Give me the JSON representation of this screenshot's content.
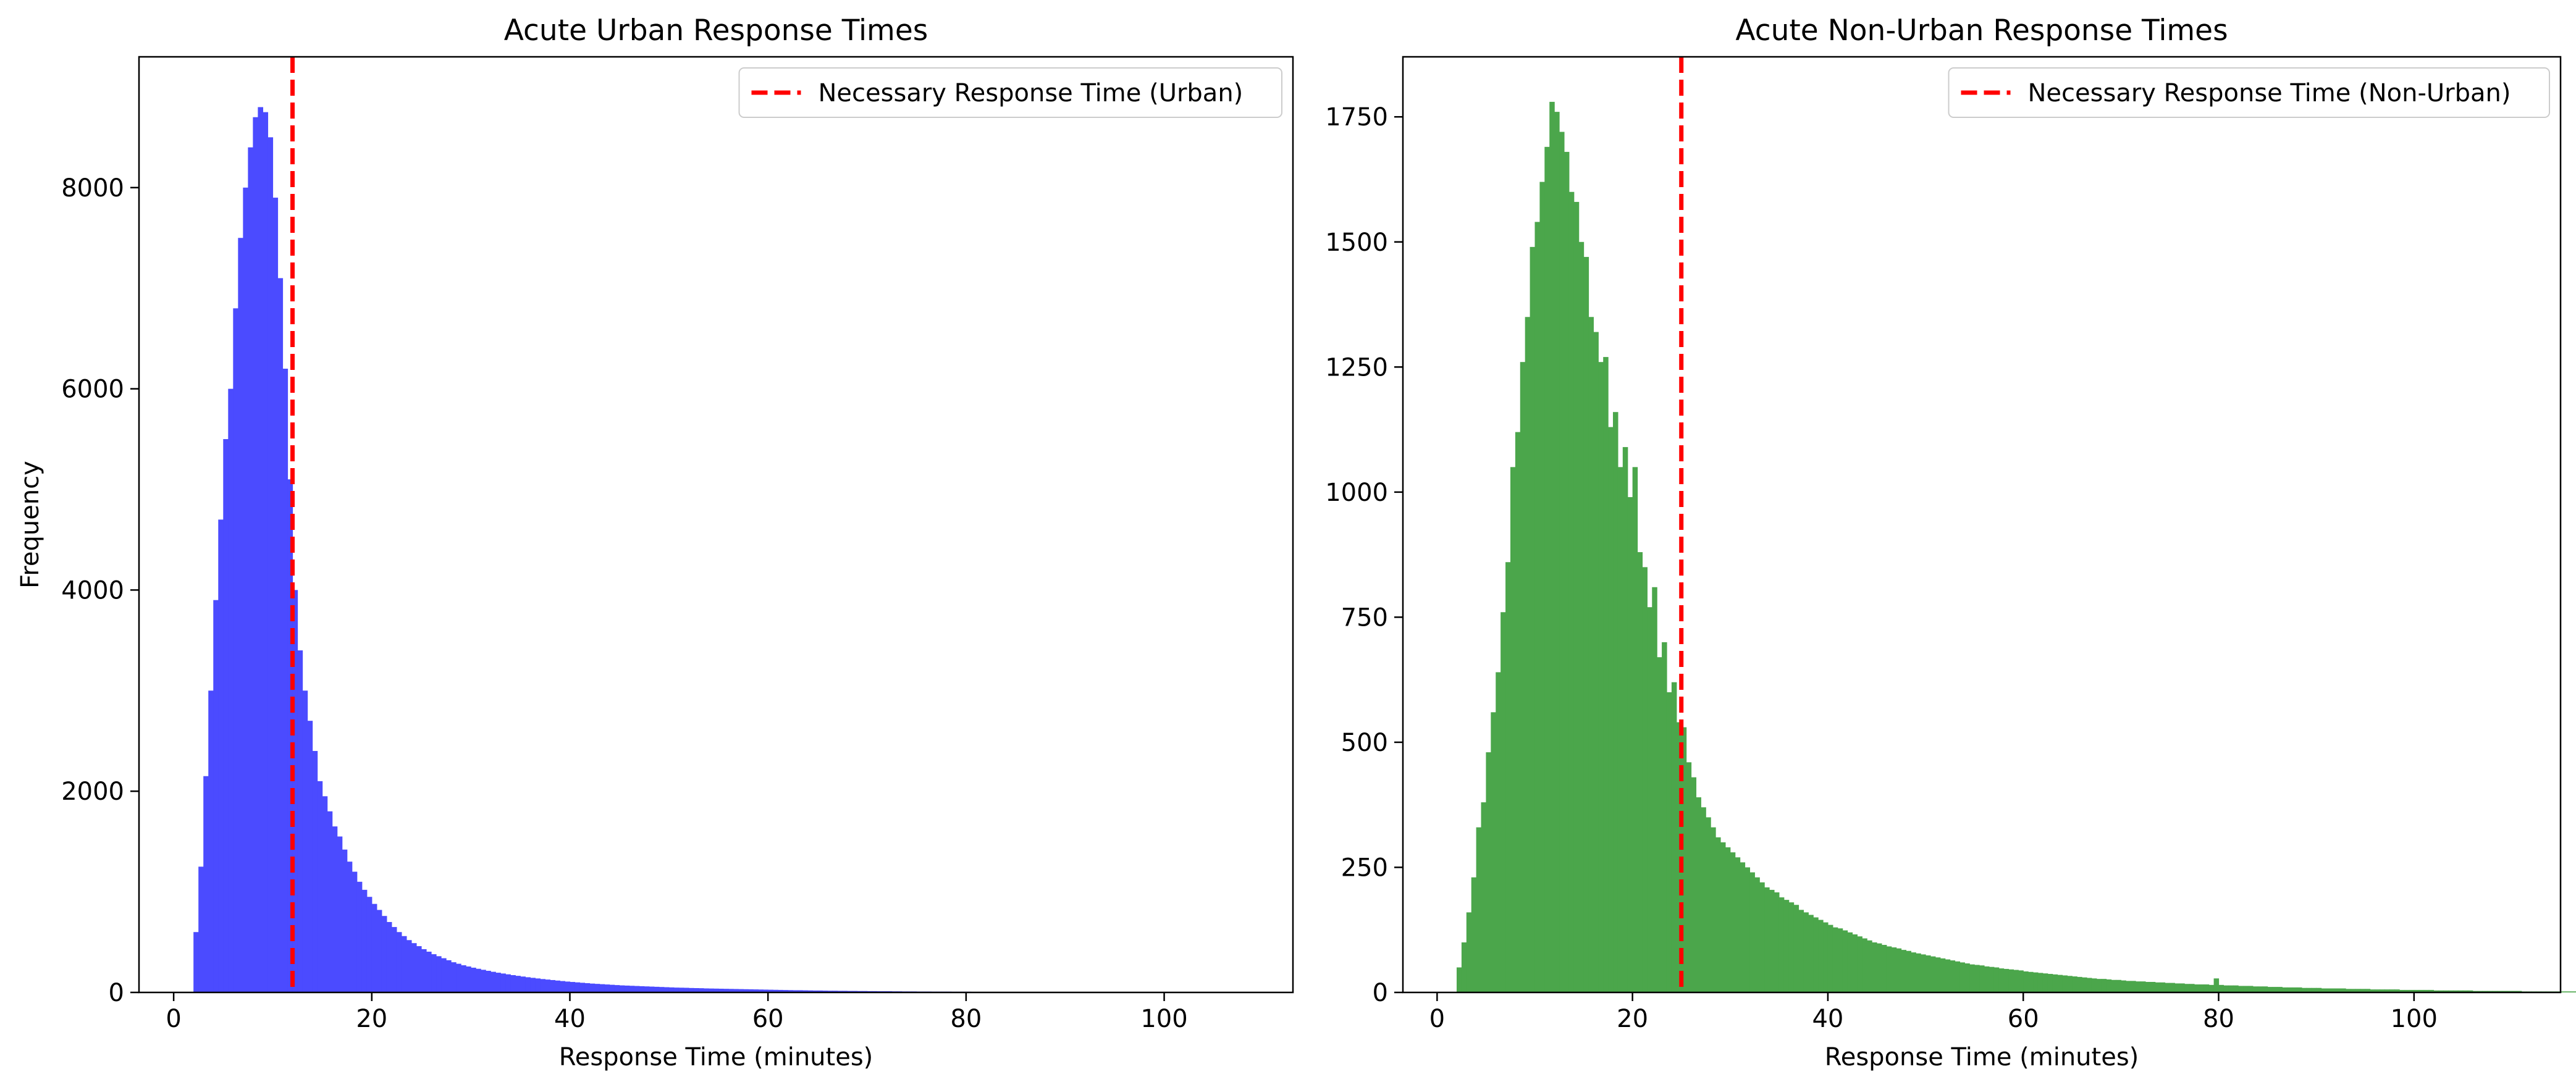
{
  "chart_data": [
    {
      "type": "histogram",
      "title": "Acute Urban Response Times",
      "xlabel": "Response Time (minutes)",
      "ylabel": "Frequency",
      "xlim": [
        -3.5,
        113
      ],
      "ylim": [
        0,
        9300
      ],
      "xticks": [
        0,
        20,
        40,
        60,
        80,
        100
      ],
      "yticks": [
        0,
        2000,
        4000,
        6000,
        8000
      ],
      "bar_color": "#4b4bff",
      "bin_start": 2,
      "bin_width": 0.5,
      "bin_counts": [
        600,
        1250,
        2150,
        3000,
        3900,
        4700,
        5500,
        6000,
        6800,
        7500,
        8000,
        8400,
        8700,
        8800,
        8750,
        8500,
        7900,
        7100,
        6200,
        5100,
        4000,
        3400,
        3000,
        2700,
        2400,
        2100,
        1950,
        1800,
        1650,
        1550,
        1420,
        1300,
        1200,
        1100,
        1020,
        950,
        880,
        820,
        760,
        700,
        650,
        600,
        560,
        520,
        490,
        460,
        430,
        405,
        380,
        360,
        340,
        320,
        300,
        285,
        270,
        258,
        246,
        235,
        225,
        215,
        205,
        196,
        188,
        180,
        172,
        165,
        158,
        151,
        145,
        139,
        133,
        128,
        123,
        118,
        113,
        108,
        104,
        100,
        96,
        92,
        88,
        85,
        82,
        79,
        76,
        73,
        70,
        68,
        66,
        64,
        62,
        60,
        58,
        56,
        54,
        52,
        50,
        48,
        47,
        46,
        44,
        43,
        42,
        40,
        39,
        38,
        37,
        36,
        35,
        34,
        33,
        32,
        31,
        30,
        29,
        28,
        27,
        26,
        25,
        24,
        23,
        22,
        22,
        21,
        20,
        19,
        19,
        18,
        17,
        17,
        16,
        16,
        15,
        15,
        14,
        14,
        13,
        13,
        12,
        12,
        12,
        11,
        11,
        10,
        10,
        10,
        9,
        9,
        9,
        8,
        8,
        8,
        8,
        7,
        7,
        7,
        7,
        6,
        6,
        6,
        6,
        6,
        5,
        5,
        5,
        5,
        5,
        5,
        4,
        4,
        4,
        4,
        4,
        4,
        4,
        3,
        3,
        3,
        3,
        3,
        3,
        3,
        3,
        3,
        2,
        2,
        2,
        2,
        2,
        2,
        2,
        2,
        2,
        2,
        2,
        2,
        2,
        1,
        1,
        1,
        1,
        1,
        1,
        1,
        1,
        1,
        1,
        1,
        1,
        1,
        1,
        1,
        1,
        1,
        1,
        1,
        1
      ],
      "reference_line": {
        "label": "Necessary Response Time (Urban)",
        "x": 12,
        "color": "#ff0000",
        "style": "dashed"
      },
      "legend_position": "top-right"
    },
    {
      "type": "histogram",
      "title": "Acute Non-Urban Response Times",
      "xlabel": "Response Time (minutes)",
      "ylabel": "",
      "xlim": [
        -3.5,
        115
      ],
      "ylim": [
        0,
        1870
      ],
      "xticks": [
        0,
        20,
        40,
        60,
        80,
        100
      ],
      "yticks": [
        0,
        250,
        500,
        750,
        1000,
        1250,
        1500,
        1750
      ],
      "bar_color": "#4ba64b",
      "bin_start": 2,
      "bin_width": 0.5,
      "bin_counts": [
        50,
        100,
        160,
        230,
        330,
        380,
        480,
        560,
        640,
        760,
        860,
        1050,
        1120,
        1260,
        1350,
        1490,
        1540,
        1620,
        1690,
        1780,
        1760,
        1720,
        1680,
        1600,
        1580,
        1500,
        1470,
        1350,
        1320,
        1260,
        1270,
        1130,
        1160,
        1050,
        1090,
        990,
        1050,
        880,
        850,
        770,
        810,
        670,
        700,
        600,
        620,
        540,
        530,
        460,
        430,
        390,
        370,
        350,
        330,
        310,
        300,
        290,
        280,
        270,
        260,
        250,
        240,
        230,
        220,
        210,
        205,
        200,
        190,
        185,
        180,
        175,
        165,
        160,
        155,
        150,
        145,
        140,
        135,
        130,
        128,
        124,
        120,
        116,
        112,
        108,
        104,
        100,
        98,
        95,
        92,
        90,
        88,
        85,
        83,
        80,
        78,
        76,
        74,
        72,
        70,
        68,
        66,
        64,
        62,
        60,
        58,
        56,
        55,
        54,
        52,
        51,
        50,
        48,
        47,
        46,
        45,
        44,
        42,
        41,
        40,
        39,
        38,
        37,
        36,
        35,
        34,
        33,
        32,
        31,
        30,
        29,
        28,
        27,
        27,
        26,
        25,
        25,
        24,
        23,
        23,
        22,
        22,
        21,
        21,
        20,
        20,
        19,
        19,
        18,
        18,
        17,
        17,
        16,
        16,
        16,
        15,
        28,
        15,
        14,
        14,
        14,
        13,
        13,
        13,
        12,
        12,
        12,
        11,
        11,
        11,
        10,
        10,
        10,
        10,
        9,
        9,
        9,
        9,
        8,
        8,
        8,
        8,
        8,
        7,
        7,
        7,
        7,
        7,
        6,
        6,
        6,
        6,
        6,
        6,
        5,
        5,
        5,
        5,
        5,
        5,
        5,
        4,
        4,
        4,
        4,
        4,
        4,
        4,
        4,
        3,
        3,
        3,
        3,
        3,
        3,
        3,
        3,
        3,
        3,
        2,
        2,
        2,
        2,
        2,
        2,
        2,
        2,
        2,
        2,
        2,
        2
      ],
      "reference_line": {
        "label": "Necessary Response Time (Non-Urban)",
        "x": 25,
        "color": "#ff0000",
        "style": "dashed"
      },
      "legend_position": "top-right"
    }
  ]
}
